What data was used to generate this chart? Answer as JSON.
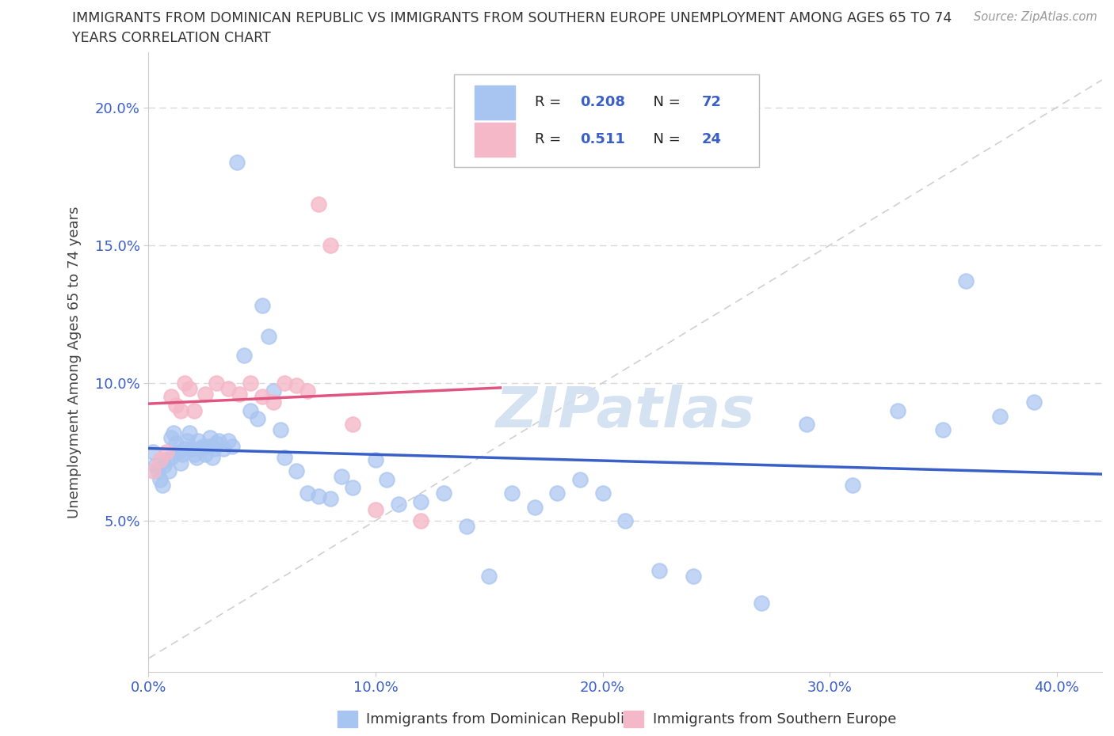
{
  "title_line1": "IMMIGRANTS FROM DOMINICAN REPUBLIC VS IMMIGRANTS FROM SOUTHERN EUROPE UNEMPLOYMENT AMONG AGES 65 TO 74",
  "title_line2": "YEARS CORRELATION CHART",
  "source": "Source: ZipAtlas.com",
  "ylabel": "Unemployment Among Ages 65 to 74 years",
  "xlim": [
    0.0,
    0.42
  ],
  "ylim": [
    -0.005,
    0.22
  ],
  "xticks": [
    0.0,
    0.1,
    0.2,
    0.3,
    0.4
  ],
  "xtick_labels": [
    "0.0%",
    "10.0%",
    "20.0%",
    "30.0%",
    "40.0%"
  ],
  "yticks": [
    0.05,
    0.1,
    0.15,
    0.2
  ],
  "ytick_labels": [
    "5.0%",
    "10.0%",
    "15.0%",
    "20.0%"
  ],
  "blue_color": "#a8c4f0",
  "pink_color": "#f5b8c8",
  "blue_line_color": "#3a5fc8",
  "pink_line_color": "#e05580",
  "diag_line_color": "#d0d0d0",
  "R_blue": 0.208,
  "N_blue": 72,
  "R_pink": 0.511,
  "N_pink": 24,
  "legend_label_blue": "Immigrants from Dominican Republic",
  "legend_label_pink": "Immigrants from Southern Europe",
  "blue_x": [
    0.002,
    0.003,
    0.004,
    0.005,
    0.006,
    0.007,
    0.008,
    0.009,
    0.01,
    0.01,
    0.011,
    0.012,
    0.013,
    0.014,
    0.015,
    0.016,
    0.017,
    0.018,
    0.019,
    0.02,
    0.021,
    0.022,
    0.023,
    0.024,
    0.025,
    0.026,
    0.027,
    0.028,
    0.029,
    0.03,
    0.031,
    0.033,
    0.035,
    0.037,
    0.039,
    0.042,
    0.045,
    0.048,
    0.05,
    0.053,
    0.055,
    0.058,
    0.06,
    0.065,
    0.07,
    0.075,
    0.08,
    0.085,
    0.09,
    0.1,
    0.105,
    0.11,
    0.12,
    0.13,
    0.14,
    0.15,
    0.16,
    0.17,
    0.18,
    0.19,
    0.2,
    0.21,
    0.225,
    0.24,
    0.27,
    0.29,
    0.31,
    0.33,
    0.35,
    0.36,
    0.375,
    0.39
  ],
  "blue_y": [
    0.075,
    0.07,
    0.068,
    0.065,
    0.063,
    0.07,
    0.072,
    0.068,
    0.08,
    0.073,
    0.082,
    0.078,
    0.075,
    0.071,
    0.074,
    0.076,
    0.079,
    0.082,
    0.076,
    0.074,
    0.073,
    0.079,
    0.076,
    0.077,
    0.074,
    0.077,
    0.08,
    0.073,
    0.076,
    0.078,
    0.079,
    0.076,
    0.079,
    0.077,
    0.18,
    0.11,
    0.09,
    0.087,
    0.128,
    0.117,
    0.097,
    0.083,
    0.073,
    0.068,
    0.06,
    0.059,
    0.058,
    0.066,
    0.062,
    0.072,
    0.065,
    0.056,
    0.057,
    0.06,
    0.048,
    0.03,
    0.06,
    0.055,
    0.06,
    0.065,
    0.06,
    0.05,
    0.032,
    0.03,
    0.02,
    0.085,
    0.063,
    0.09,
    0.083,
    0.137,
    0.088,
    0.093
  ],
  "pink_x": [
    0.002,
    0.005,
    0.008,
    0.01,
    0.012,
    0.014,
    0.016,
    0.018,
    0.02,
    0.025,
    0.03,
    0.035,
    0.04,
    0.045,
    0.05,
    0.055,
    0.06,
    0.065,
    0.07,
    0.075,
    0.08,
    0.09,
    0.1,
    0.12
  ],
  "pink_y": [
    0.068,
    0.072,
    0.075,
    0.095,
    0.092,
    0.09,
    0.1,
    0.098,
    0.09,
    0.096,
    0.1,
    0.098,
    0.096,
    0.1,
    0.095,
    0.093,
    0.1,
    0.099,
    0.097,
    0.165,
    0.15,
    0.085,
    0.054,
    0.05
  ],
  "watermark": "ZIPatlas",
  "watermark_color": "#d0dff0"
}
